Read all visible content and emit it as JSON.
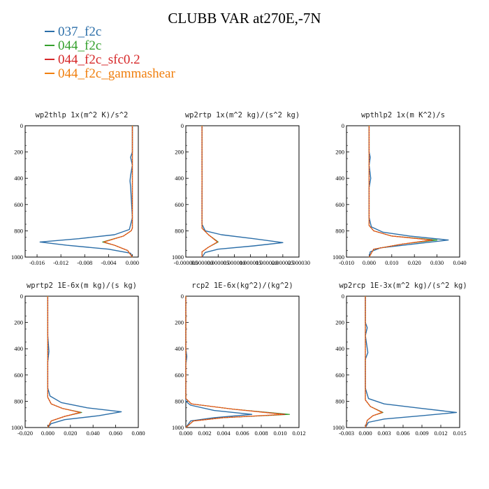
{
  "title": "CLUBB VAR at270E,-7N",
  "legend": [
    {
      "name": "037_f2c",
      "color": "#2b6ea8"
    },
    {
      "name": "044_f2c",
      "color": "#34a02c"
    },
    {
      "name": "044_f2c_sfc0.2",
      "color": "#d62728"
    },
    {
      "name": "044_f2c_gammashear",
      "color": "#f07f0e"
    }
  ],
  "chart_data": [
    {
      "type": "line",
      "title": "wp2thlp  1x(m^2 K)/s^2",
      "xlim": [
        -0.018,
        0.001
      ],
      "ylim": [
        1000,
        0
      ],
      "xticks": [
        "-0.016",
        "-0.012",
        "-0.008",
        "-0.004",
        "0.000"
      ],
      "xtick_values": [
        -0.016,
        -0.012,
        -0.008,
        -0.004,
        0.0
      ],
      "yticks": [
        0,
        200,
        400,
        600,
        800,
        1000
      ],
      "series": [
        {
          "name": "037_f2c",
          "x": [
            0.0,
            0.0,
            -0.0003,
            0.0,
            -0.0003,
            -0.0004,
            -0.0003,
            0.0,
            -0.0005,
            -0.003,
            -0.009,
            -0.0155,
            -0.011,
            -0.004,
            -0.0003,
            0.0
          ],
          "y": [
            0,
            200,
            240,
            300,
            380,
            420,
            460,
            700,
            790,
            830,
            860,
            885,
            910,
            940,
            970,
            1000
          ]
        },
        {
          "name": "044_f2c",
          "x": [
            0.0,
            0.0,
            0.0,
            -0.0002,
            -0.0015,
            -0.005,
            -0.003,
            -0.0008,
            0.0
          ],
          "y": [
            0,
            400,
            780,
            800,
            840,
            885,
            910,
            950,
            1000
          ]
        },
        {
          "name": "044_f2c_sfc0.2",
          "x": [
            0.0,
            0.0,
            0.0,
            -0.0002,
            -0.0015,
            -0.0048,
            -0.003,
            -0.0008,
            0.0
          ],
          "y": [
            0,
            400,
            780,
            800,
            840,
            885,
            910,
            950,
            1000
          ]
        },
        {
          "name": "044_f2c_gammashear",
          "x": [
            0.0,
            0.0,
            0.0,
            -0.0002,
            -0.0015,
            -0.0047,
            -0.003,
            -0.0008,
            0.0
          ],
          "y": [
            0,
            400,
            780,
            800,
            840,
            885,
            910,
            950,
            1000
          ]
        }
      ]
    },
    {
      "type": "line",
      "title": "wp2rtp  1x(m^2 kg)/(s^2 kg)",
      "xlim": [
        -5e-06,
        3e-05
      ],
      "ylim": [
        1000,
        0
      ],
      "xticks": [
        "-0.000005",
        "0.000000",
        "0.000005",
        "0.000010",
        "0.000015",
        "0.000020",
        "0.000025",
        "0.000030"
      ],
      "xtick_values": [
        -5e-06,
        0.0,
        5e-06,
        1e-05,
        1.5e-05,
        2e-05,
        2.5e-05,
        3e-05
      ],
      "yticks": [
        0,
        200,
        400,
        600,
        800,
        1000
      ],
      "series": [
        {
          "name": "037_f2c",
          "x": [
            0.0,
            0.0,
            2e-09,
            0.0,
            0.0,
            1e-06,
            6e-06,
            1.6e-05,
            2.5e-05,
            1.6e-05,
            5e-06,
            1e-06,
            0.0
          ],
          "y": [
            0,
            300,
            420,
            500,
            750,
            800,
            830,
            860,
            890,
            915,
            940,
            965,
            1000
          ]
        },
        {
          "name": "044_f2c",
          "x": [
            0.0,
            0.0,
            0.0,
            2e-06,
            5e-06,
            2e-06,
            0.0,
            0.0
          ],
          "y": [
            0,
            500,
            780,
            830,
            885,
            925,
            960,
            1000
          ]
        },
        {
          "name": "044_f2c_sfc0.2",
          "x": [
            0.0,
            0.0,
            0.0,
            2e-06,
            4.8e-06,
            2e-06,
            0.0,
            0.0
          ],
          "y": [
            0,
            500,
            780,
            830,
            885,
            925,
            960,
            1000
          ]
        },
        {
          "name": "044_f2c_gammashear",
          "x": [
            0.0,
            0.0,
            0.0,
            2e-06,
            4.7e-06,
            2e-06,
            0.0,
            0.0
          ],
          "y": [
            0,
            500,
            780,
            830,
            885,
            925,
            960,
            1000
          ]
        }
      ]
    },
    {
      "type": "line",
      "title": "wpthlp2  1x(m K^2)/s",
      "xlim": [
        -0.01,
        0.04
      ],
      "ylim": [
        1000,
        0
      ],
      "xticks": [
        "-0.010",
        "0.000",
        "0.010",
        "0.020",
        "0.030",
        "0.040"
      ],
      "xtick_values": [
        -0.01,
        0.0,
        0.01,
        0.02,
        0.03,
        0.04
      ],
      "yticks": [
        0,
        200,
        400,
        600,
        800,
        1000
      ],
      "series": [
        {
          "name": "037_f2c",
          "x": [
            0.0,
            0.0,
            0.0005,
            0.0,
            0.0007,
            0.0,
            0.0,
            0.001,
            0.006,
            0.018,
            0.035,
            0.02,
            0.005,
            0.0005,
            0.0
          ],
          "y": [
            0,
            200,
            240,
            300,
            400,
            470,
            700,
            770,
            810,
            840,
            870,
            900,
            930,
            960,
            1000
          ]
        },
        {
          "name": "044_f2c",
          "x": [
            0.0,
            0.0,
            0.0,
            0.002,
            0.01,
            0.03,
            0.015,
            0.002,
            0.0
          ],
          "y": [
            0,
            400,
            760,
            800,
            840,
            870,
            900,
            940,
            1000
          ]
        },
        {
          "name": "044_f2c_sfc0.2",
          "x": [
            0.0,
            0.0,
            0.0,
            0.002,
            0.01,
            0.028,
            0.015,
            0.002,
            0.0
          ],
          "y": [
            0,
            400,
            760,
            800,
            840,
            870,
            900,
            940,
            1000
          ]
        },
        {
          "name": "044_f2c_gammashear",
          "x": [
            0.0,
            0.0,
            0.0,
            0.002,
            0.01,
            0.027,
            0.015,
            0.002,
            0.0
          ],
          "y": [
            0,
            400,
            760,
            800,
            840,
            870,
            900,
            940,
            1000
          ]
        }
      ]
    },
    {
      "type": "line",
      "title": "wprtp2  1E-6x(m kg)/(s kg)",
      "xlim": [
        -0.02,
        0.08
      ],
      "ylim": [
        1000,
        0
      ],
      "xticks": [
        "-0.020",
        "0.000",
        "0.020",
        "0.040",
        "0.060",
        "0.080"
      ],
      "xtick_values": [
        -0.02,
        0.0,
        0.02,
        0.04,
        0.06,
        0.08
      ],
      "yticks": [
        0,
        200,
        400,
        600,
        800,
        1000
      ],
      "series": [
        {
          "name": "037_f2c",
          "x": [
            0.0,
            0.0,
            0.001,
            0.0,
            0.0,
            0.002,
            0.012,
            0.035,
            0.065,
            0.045,
            0.015,
            0.003,
            0.0
          ],
          "y": [
            0,
            300,
            420,
            500,
            700,
            760,
            810,
            850,
            880,
            910,
            940,
            970,
            1000
          ]
        },
        {
          "name": "044_f2c",
          "x": [
            0.0,
            0.0,
            0.0,
            0.003,
            0.013,
            0.03,
            0.015,
            0.003,
            0.0
          ],
          "y": [
            0,
            500,
            770,
            820,
            855,
            885,
            915,
            950,
            1000
          ]
        },
        {
          "name": "044_f2c_sfc0.2",
          "x": [
            0.0,
            0.0,
            0.0,
            0.003,
            0.013,
            0.029,
            0.015,
            0.003,
            0.0
          ],
          "y": [
            0,
            500,
            770,
            820,
            855,
            885,
            915,
            950,
            1000
          ]
        },
        {
          "name": "044_f2c_gammashear",
          "x": [
            0.0,
            0.0,
            0.0,
            0.003,
            0.013,
            0.028,
            0.015,
            0.003,
            0.0
          ],
          "y": [
            0,
            500,
            770,
            820,
            855,
            885,
            915,
            950,
            1000
          ]
        }
      ]
    },
    {
      "type": "line",
      "title": "rcp2  1E-6x(kg^2)/(kg^2)",
      "xlim": [
        0.0,
        0.012
      ],
      "ylim": [
        1000,
        0
      ],
      "xticks": [
        "0.000",
        "0.002",
        "0.004",
        "0.006",
        "0.008",
        "0.010",
        "0.012"
      ],
      "xtick_values": [
        0.0,
        0.002,
        0.004,
        0.006,
        0.008,
        0.01,
        0.012
      ],
      "yticks": [
        0,
        200,
        400,
        600,
        800,
        1000
      ],
      "series": [
        {
          "name": "037_f2c",
          "x": [
            0.0,
            0.0,
            0.0001,
            0.0,
            0.0,
            0.0005,
            0.003,
            0.007,
            0.003,
            0.0005,
            0.0
          ],
          "y": [
            0,
            400,
            460,
            520,
            800,
            830,
            870,
            900,
            925,
            950,
            1000
          ]
        },
        {
          "name": "044_f2c",
          "x": [
            0.0,
            0.0,
            0.0006,
            0.005,
            0.011,
            0.004,
            0.0008,
            0.0
          ],
          "y": [
            0,
            780,
            820,
            860,
            900,
            925,
            950,
            1000
          ]
        },
        {
          "name": "044_f2c_sfc0.2",
          "x": [
            0.0,
            0.0,
            0.0006,
            0.005,
            0.0105,
            0.004,
            0.0008,
            0.0
          ],
          "y": [
            0,
            780,
            820,
            860,
            900,
            925,
            950,
            1000
          ]
        },
        {
          "name": "044_f2c_gammashear",
          "x": [
            0.0,
            0.0,
            0.0006,
            0.005,
            0.0102,
            0.004,
            0.0008,
            0.0
          ],
          "y": [
            0,
            780,
            820,
            860,
            900,
            925,
            950,
            1000
          ]
        }
      ]
    },
    {
      "type": "line",
      "title": "wp2rcp  1E-3x(m^2 kg)/(s^2 kg)",
      "xlim": [
        -0.003,
        0.015
      ],
      "ylim": [
        1000,
        0
      ],
      "xticks": [
        "-0.003",
        "0.000",
        "0.003",
        "0.006",
        "0.009",
        "0.012",
        "0.015"
      ],
      "xtick_values": [
        -0.003,
        0.0,
        0.003,
        0.006,
        0.009,
        0.012,
        0.015
      ],
      "yticks": [
        0,
        200,
        400,
        600,
        800,
        1000
      ],
      "series": [
        {
          "name": "037_f2c",
          "x": [
            0.0,
            0.0,
            0.0003,
            0.0,
            0.0004,
            0.0,
            0.0,
            0.0005,
            0.003,
            0.009,
            0.0145,
            0.009,
            0.003,
            0.0005,
            0.0
          ],
          "y": [
            0,
            200,
            240,
            300,
            430,
            480,
            700,
            780,
            820,
            855,
            885,
            910,
            935,
            960,
            1000
          ]
        },
        {
          "name": "044_f2c",
          "x": [
            0.0,
            0.0,
            0.0,
            0.0008,
            0.0028,
            0.0012,
            0.0003,
            0.0
          ],
          "y": [
            0,
            500,
            790,
            840,
            885,
            910,
            945,
            1000
          ]
        },
        {
          "name": "044_f2c_sfc0.2",
          "x": [
            0.0,
            0.0,
            0.0,
            0.0008,
            0.0027,
            0.0012,
            0.0003,
            0.0
          ],
          "y": [
            0,
            500,
            790,
            840,
            885,
            910,
            945,
            1000
          ]
        },
        {
          "name": "044_f2c_gammashear",
          "x": [
            0.0,
            0.0,
            0.0,
            0.0008,
            0.0026,
            0.0012,
            0.0003,
            0.0
          ],
          "y": [
            0,
            500,
            790,
            840,
            885,
            910,
            945,
            1000
          ]
        }
      ]
    }
  ]
}
